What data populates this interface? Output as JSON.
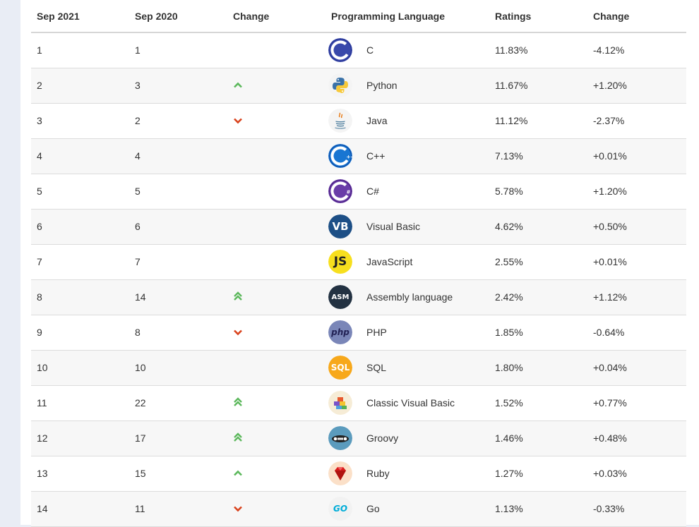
{
  "table": {
    "headers": [
      "Sep 2021",
      "Sep 2020",
      "Change",
      "Programming Language",
      "Ratings",
      "Change"
    ],
    "colors": {
      "up": "#5cb85c",
      "down": "#d9431e"
    },
    "rows": [
      {
        "rank": "1",
        "prev": "1",
        "trend": "none",
        "icon": "c-logo-icon",
        "lang": "C",
        "rating": "11.83%",
        "change": "-4.12%"
      },
      {
        "rank": "2",
        "prev": "3",
        "trend": "up",
        "icon": "python-logo-icon",
        "lang": "Python",
        "rating": "11.67%",
        "change": "+1.20%"
      },
      {
        "rank": "3",
        "prev": "2",
        "trend": "down",
        "icon": "java-logo-icon",
        "lang": "Java",
        "rating": "11.12%",
        "change": "-2.37%"
      },
      {
        "rank": "4",
        "prev": "4",
        "trend": "none",
        "icon": "cpp-logo-icon",
        "lang": "C++",
        "rating": "7.13%",
        "change": "+0.01%"
      },
      {
        "rank": "5",
        "prev": "5",
        "trend": "none",
        "icon": "csharp-logo-icon",
        "lang": "C#",
        "rating": "5.78%",
        "change": "+1.20%"
      },
      {
        "rank": "6",
        "prev": "6",
        "trend": "none",
        "icon": "visual-basic-logo-icon",
        "lang": "Visual Basic",
        "rating": "4.62%",
        "change": "+0.50%"
      },
      {
        "rank": "7",
        "prev": "7",
        "trend": "none",
        "icon": "javascript-logo-icon",
        "lang": "JavaScript",
        "rating": "2.55%",
        "change": "+0.01%"
      },
      {
        "rank": "8",
        "prev": "14",
        "trend": "up2",
        "icon": "assembly-logo-icon",
        "lang": "Assembly language",
        "rating": "2.42%",
        "change": "+1.12%"
      },
      {
        "rank": "9",
        "prev": "8",
        "trend": "down",
        "icon": "php-logo-icon",
        "lang": "PHP",
        "rating": "1.85%",
        "change": "-0.64%"
      },
      {
        "rank": "10",
        "prev": "10",
        "trend": "none",
        "icon": "sql-logo-icon",
        "lang": "SQL",
        "rating": "1.80%",
        "change": "+0.04%"
      },
      {
        "rank": "11",
        "prev": "22",
        "trend": "up2",
        "icon": "classic-visual-basic-logo-icon",
        "lang": "Classic Visual Basic",
        "rating": "1.52%",
        "change": "+0.77%"
      },
      {
        "rank": "12",
        "prev": "17",
        "trend": "up2",
        "icon": "groovy-logo-icon",
        "lang": "Groovy",
        "rating": "1.46%",
        "change": "+0.48%"
      },
      {
        "rank": "13",
        "prev": "15",
        "trend": "up",
        "icon": "ruby-logo-icon",
        "lang": "Ruby",
        "rating": "1.27%",
        "change": "+0.03%"
      },
      {
        "rank": "14",
        "prev": "11",
        "trend": "down",
        "icon": "go-logo-icon",
        "lang": "Go",
        "rating": "1.13%",
        "change": "-0.33%"
      }
    ]
  },
  "logo_text": {
    "vb": "VB",
    "js": "JS",
    "asm": "ASM",
    "php": "php",
    "sql": "SQL",
    "go": "GO",
    "cpp": "++",
    "csharp": "#"
  }
}
